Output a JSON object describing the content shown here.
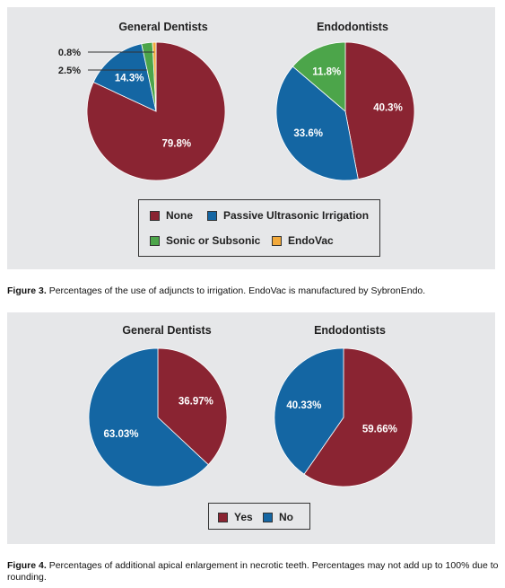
{
  "figure3": {
    "caption_label": "Figure 3.",
    "caption_text": "Percentages of the use of adjuncts to irrigation. EndoVac is manufactured by SybronEndo."
  },
  "figure4": {
    "caption_label": "Figure 4.",
    "caption_text": "Percentages of additional apical enlargement in necrotic teeth. Percentages may not add up to 100% due to rounding."
  },
  "colors": {
    "red": "#8a2432",
    "blue": "#1466a3",
    "green": "#4ca54a",
    "orange": "#f2a93b"
  },
  "chart_data": [
    {
      "type": "pie",
      "title": "General Dentists",
      "slices": [
        {
          "label": "None",
          "value": 79.8,
          "text": "79.8%",
          "color": "#8a2432"
        },
        {
          "label": "Passive Ultrasonic Irrigation",
          "value": 14.3,
          "text": "14.3%",
          "color": "#1466a3"
        },
        {
          "label": "Sonic or Subsonic",
          "value": 2.5,
          "text": "2.5%",
          "color": "#4ca54a"
        },
        {
          "label": "EndoVac",
          "value": 0.8,
          "text": "0.8%",
          "color": "#f2a93b"
        }
      ]
    },
    {
      "type": "pie",
      "title": "Endodontists",
      "slices": [
        {
          "label": "None",
          "value": 40.3,
          "text": "40.3%",
          "color": "#8a2432"
        },
        {
          "label": "Passive Ultrasonic Irrigation",
          "value": 33.6,
          "text": "33.6%",
          "color": "#1466a3"
        },
        {
          "label": "Sonic or Subsonic",
          "value": 11.8,
          "text": "11.8%",
          "color": "#4ca54a"
        },
        {
          "label": "EndoVac",
          "value": 0,
          "text": "",
          "color": "#f2a93b"
        }
      ]
    },
    {
      "type": "pie",
      "title": "General Dentists",
      "slices": [
        {
          "label": "Yes",
          "value": 36.97,
          "text": "36.97%",
          "color": "#8a2432"
        },
        {
          "label": "No",
          "value": 63.03,
          "text": "63.03%",
          "color": "#1466a3"
        }
      ]
    },
    {
      "type": "pie",
      "title": "Endodontists",
      "slices": [
        {
          "label": "Yes",
          "value": 59.66,
          "text": "59.66%",
          "color": "#8a2432"
        },
        {
          "label": "No",
          "value": 40.33,
          "text": "40.33%",
          "color": "#1466a3"
        }
      ]
    }
  ],
  "legend1": [
    {
      "label": "None",
      "color": "#8a2432"
    },
    {
      "label": "Passive Ultrasonic Irrigation",
      "color": "#1466a3"
    },
    {
      "label": "Sonic or Subsonic",
      "color": "#4ca54a"
    },
    {
      "label": "EndoVac",
      "color": "#f2a93b"
    }
  ],
  "legend2": [
    {
      "label": "Yes",
      "color": "#8a2432"
    },
    {
      "label": "No",
      "color": "#1466a3"
    }
  ]
}
